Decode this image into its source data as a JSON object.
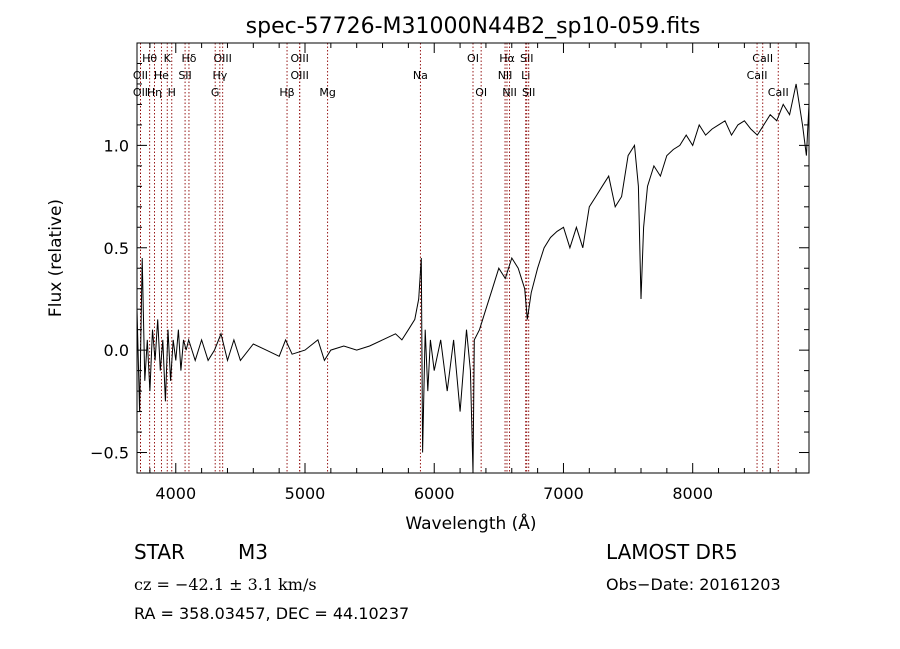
{
  "chart_data": {
    "type": "line",
    "title": "spec-57726-M31000N44B2_sp10-059.fits",
    "xlabel": "Wavelength (Å)",
    "ylabel": "Flux (relative)",
    "xlim": [
      3700,
      8900
    ],
    "ylim": [
      -0.6,
      1.5
    ],
    "x_ticks": [
      4000,
      5000,
      6000,
      7000,
      8000
    ],
    "y_ticks": [
      -0.5,
      0.0,
      0.5,
      1.0
    ],
    "y_tick_labels": [
      "−0.5",
      "0.0",
      "0.5",
      "1.0"
    ],
    "series": [
      {
        "points": [
          [
            3700,
            0.2
          ],
          [
            3720,
            -0.3
          ],
          [
            3740,
            0.45
          ],
          [
            3760,
            -0.15
          ],
          [
            3780,
            0.05
          ],
          [
            3800,
            -0.2
          ],
          [
            3820,
            0.1
          ],
          [
            3840,
            -0.05
          ],
          [
            3860,
            0.15
          ],
          [
            3880,
            -0.1
          ],
          [
            3900,
            0.05
          ],
          [
            3920,
            -0.25
          ],
          [
            3940,
            0.1
          ],
          [
            3960,
            -0.15
          ],
          [
            3980,
            0.05
          ],
          [
            4000,
            -0.05
          ],
          [
            4020,
            0.1
          ],
          [
            4040,
            -0.1
          ],
          [
            4060,
            0.05
          ],
          [
            4080,
            0.0
          ],
          [
            4100,
            0.05
          ],
          [
            4150,
            -0.05
          ],
          [
            4200,
            0.05
          ],
          [
            4250,
            -0.05
          ],
          [
            4300,
            0.0
          ],
          [
            4350,
            0.08
          ],
          [
            4400,
            -0.05
          ],
          [
            4450,
            0.05
          ],
          [
            4500,
            -0.05
          ],
          [
            4600,
            0.03
          ],
          [
            4700,
            0.0
          ],
          [
            4800,
            -0.03
          ],
          [
            4850,
            0.05
          ],
          [
            4900,
            -0.02
          ],
          [
            5000,
            0.0
          ],
          [
            5100,
            0.05
          ],
          [
            5150,
            -0.05
          ],
          [
            5200,
            0.0
          ],
          [
            5300,
            0.02
          ],
          [
            5400,
            0.0
          ],
          [
            5500,
            0.02
          ],
          [
            5600,
            0.05
          ],
          [
            5700,
            0.08
          ],
          [
            5750,
            0.05
          ],
          [
            5800,
            0.1
          ],
          [
            5850,
            0.15
          ],
          [
            5880,
            0.25
          ],
          [
            5900,
            0.45
          ],
          [
            5910,
            -0.5
          ],
          [
            5930,
            0.1
          ],
          [
            5950,
            -0.2
          ],
          [
            5970,
            0.05
          ],
          [
            6000,
            -0.1
          ],
          [
            6050,
            0.05
          ],
          [
            6100,
            -0.2
          ],
          [
            6150,
            0.05
          ],
          [
            6200,
            -0.3
          ],
          [
            6250,
            0.1
          ],
          [
            6280,
            -0.1
          ],
          [
            6300,
            -0.6
          ],
          [
            6310,
            0.05
          ],
          [
            6350,
            0.1
          ],
          [
            6400,
            0.2
          ],
          [
            6450,
            0.3
          ],
          [
            6500,
            0.4
          ],
          [
            6550,
            0.35
          ],
          [
            6600,
            0.45
          ],
          [
            6650,
            0.4
          ],
          [
            6700,
            0.3
          ],
          [
            6720,
            0.15
          ],
          [
            6750,
            0.28
          ],
          [
            6800,
            0.4
          ],
          [
            6850,
            0.5
          ],
          [
            6900,
            0.55
          ],
          [
            6950,
            0.58
          ],
          [
            7000,
            0.6
          ],
          [
            7050,
            0.5
          ],
          [
            7100,
            0.6
          ],
          [
            7150,
            0.5
          ],
          [
            7200,
            0.7
          ],
          [
            7250,
            0.75
          ],
          [
            7300,
            0.8
          ],
          [
            7350,
            0.85
          ],
          [
            7400,
            0.7
          ],
          [
            7450,
            0.75
          ],
          [
            7500,
            0.95
          ],
          [
            7550,
            1.0
          ],
          [
            7580,
            0.8
          ],
          [
            7600,
            0.25
          ],
          [
            7620,
            0.6
          ],
          [
            7650,
            0.8
          ],
          [
            7700,
            0.9
          ],
          [
            7750,
            0.85
          ],
          [
            7800,
            0.95
          ],
          [
            7850,
            0.98
          ],
          [
            7900,
            1.0
          ],
          [
            7950,
            1.05
          ],
          [
            8000,
            1.0
          ],
          [
            8050,
            1.1
          ],
          [
            8100,
            1.05
          ],
          [
            8150,
            1.08
          ],
          [
            8200,
            1.1
          ],
          [
            8250,
            1.12
          ],
          [
            8300,
            1.05
          ],
          [
            8350,
            1.1
          ],
          [
            8400,
            1.12
          ],
          [
            8450,
            1.08
          ],
          [
            8500,
            1.05
          ],
          [
            8550,
            1.1
          ],
          [
            8600,
            1.15
          ],
          [
            8650,
            1.12
          ],
          [
            8700,
            1.2
          ],
          [
            8750,
            1.15
          ],
          [
            8800,
            1.3
          ],
          [
            8850,
            1.1
          ],
          [
            8880,
            0.95
          ],
          [
            8900,
            1.2
          ]
        ]
      }
    ],
    "lines": [
      {
        "label": "Hθ",
        "x": 3798,
        "row": 0
      },
      {
        "label": "OII",
        "x": 3727,
        "row": 1
      },
      {
        "label": "OII",
        "x": 3727,
        "row": 2
      },
      {
        "label": "K",
        "x": 3934,
        "row": 0
      },
      {
        "label": "He",
        "x": 3889,
        "row": 1
      },
      {
        "label": "Hη",
        "x": 3835,
        "row": 2
      },
      {
        "label": "Hδ",
        "x": 4102,
        "row": 0
      },
      {
        "label": "SII",
        "x": 4072,
        "row": 1
      },
      {
        "label": "H",
        "x": 3969,
        "row": 2
      },
      {
        "label": "OIII",
        "x": 4363,
        "row": 0
      },
      {
        "label": "Hγ",
        "x": 4341,
        "row": 1
      },
      {
        "label": "G",
        "x": 4305,
        "row": 2
      },
      {
        "label": "OIII",
        "x": 4959,
        "row": 0
      },
      {
        "label": "OIII",
        "x": 4959,
        "row": 1
      },
      {
        "label": "Hβ",
        "x": 4861,
        "row": 2
      },
      {
        "label": "Mg",
        "x": 5175,
        "row": 2
      },
      {
        "label": "Na",
        "x": 5893,
        "row": 1
      },
      {
        "label": "OI",
        "x": 6300,
        "row": 0
      },
      {
        "label": "OI",
        "x": 6363,
        "row": 2
      },
      {
        "label": "Hα",
        "x": 6563,
        "row": 0
      },
      {
        "label": "SII",
        "x": 6716,
        "row": 0
      },
      {
        "label": "NII",
        "x": 6548,
        "row": 1
      },
      {
        "label": "Li",
        "x": 6708,
        "row": 1
      },
      {
        "label": "NII",
        "x": 6583,
        "row": 2
      },
      {
        "label": "SII",
        "x": 6731,
        "row": 2
      },
      {
        "label": "CaII",
        "x": 8542,
        "row": 0
      },
      {
        "label": "CaII",
        "x": 8498,
        "row": 1
      },
      {
        "label": "CaII",
        "x": 8662,
        "row": 2
      }
    ],
    "line_color": "#8b0000",
    "data_color": "#000000"
  },
  "info": {
    "object_class": "STAR",
    "subclass": "M3",
    "survey": "LAMOST DR5",
    "cz": "cz = −42.1 ± 3.1 km/s",
    "obs_date": "Obs−Date: 20161203",
    "coords": "RA = 358.03457, DEC =  44.10237"
  }
}
